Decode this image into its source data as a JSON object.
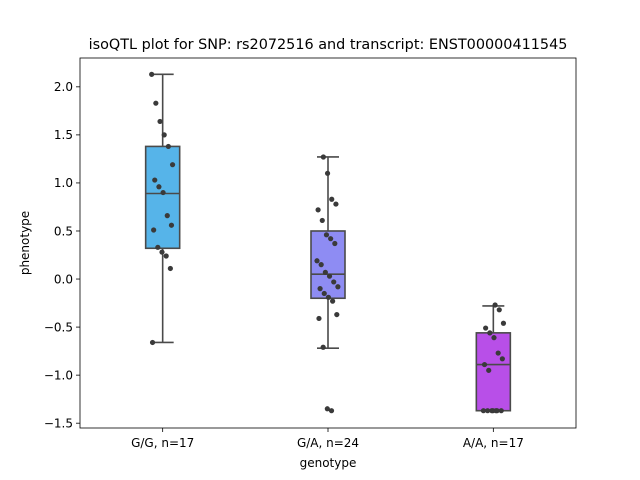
{
  "chart_data": {
    "type": "box",
    "title": "isoQTL plot for SNP: rs2072516 and transcript: ENST00000411545",
    "xlabel": "genotype",
    "ylabel": "phenotype",
    "categories": [
      "G/G, n=17",
      "G/A, n=24",
      "A/A, n=17"
    ],
    "ylim": [
      -1.55,
      2.3
    ],
    "yticks": [
      -1.5,
      -1.0,
      -0.5,
      0.0,
      0.5,
      1.0,
      1.5,
      2.0
    ],
    "ytick_labels": [
      "−1.5",
      "−1.0",
      "−0.5",
      "0.0",
      "0.5",
      "1.0",
      "1.5",
      "2.0"
    ],
    "grid": false,
    "boxes": [
      {
        "category": "G/G, n=17",
        "color": "#56b4e9",
        "whisker_low": -0.66,
        "q1": 0.32,
        "median": 0.89,
        "q3": 1.38,
        "whisker_high": 2.13
      },
      {
        "category": "G/A, n=24",
        "color": "#8e8cf3",
        "whisker_low": -0.72,
        "q1": -0.2,
        "median": 0.05,
        "q3": 0.5,
        "whisker_high": 1.27
      },
      {
        "category": "A/A, n=17",
        "color": "#b84fe8",
        "whisker_low": -1.37,
        "q1": -1.37,
        "median": -0.89,
        "q3": -0.56,
        "whisker_high": -0.28
      }
    ],
    "points": [
      [
        2.13,
        1.83,
        1.64,
        1.5,
        1.38,
        1.19,
        1.03,
        0.96,
        0.9,
        0.66,
        0.56,
        0.51,
        0.33,
        0.28,
        0.24,
        0.11,
        -0.66
      ],
      [
        1.27,
        1.1,
        0.83,
        0.78,
        0.72,
        0.61,
        0.46,
        0.42,
        0.37,
        0.19,
        0.15,
        0.07,
        0.03,
        -0.03,
        -0.08,
        -0.1,
        -0.15,
        -0.19,
        -0.23,
        -0.37,
        -0.41,
        -0.71,
        -1.35,
        -1.37
      ],
      [
        -0.27,
        -0.32,
        -0.46,
        -0.51,
        -0.56,
        -0.61,
        -0.77,
        -0.83,
        -0.89,
        -0.95,
        -1.37,
        -1.37,
        -1.37,
        -1.37,
        -1.37,
        -1.37,
        -1.37
      ]
    ]
  }
}
